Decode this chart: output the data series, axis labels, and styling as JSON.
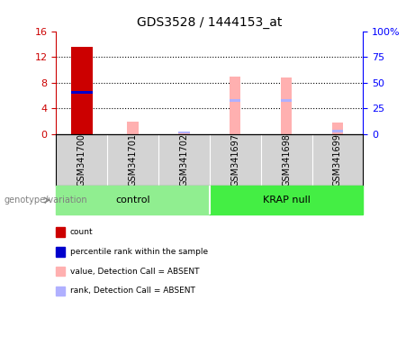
{
  "title": "GDS3528 / 1444153_at",
  "samples": [
    "GSM341700",
    "GSM341701",
    "GSM341702",
    "GSM341697",
    "GSM341698",
    "GSM341699"
  ],
  "left_ylim": [
    0,
    16
  ],
  "left_yticks": [
    0,
    4,
    8,
    12,
    16
  ],
  "right_ylim": [
    0,
    100
  ],
  "right_yticks": [
    0,
    25,
    50,
    75,
    100
  ],
  "right_yticklabels": [
    "0",
    "25",
    "50",
    "75",
    "100%"
  ],
  "count_values": [
    13.5,
    0,
    0,
    0,
    0,
    0
  ],
  "rank_values": [
    6.5,
    0,
    0,
    0,
    0,
    0
  ],
  "absent_value_values": [
    0,
    2.0,
    0.3,
    9.0,
    8.8,
    1.8
  ],
  "absent_rank_values": [
    0,
    0,
    0.3,
    5.2,
    5.2,
    0.5
  ],
  "count_color": "#cc0000",
  "rank_color": "#0000cc",
  "absent_value_color": "#ffb0b0",
  "absent_rank_color": "#b0b0ff",
  "bg_sample_row": "#d3d3d3",
  "control_color": "#90ee90",
  "krap_color": "#44ee44",
  "legend_items": [
    {
      "label": "count",
      "color": "#cc0000"
    },
    {
      "label": "percentile rank within the sample",
      "color": "#0000cc"
    },
    {
      "label": "value, Detection Call = ABSENT",
      "color": "#ffb0b0"
    },
    {
      "label": "rank, Detection Call = ABSENT",
      "color": "#b0b0ff"
    }
  ],
  "genotype_label": "genotype/variation"
}
